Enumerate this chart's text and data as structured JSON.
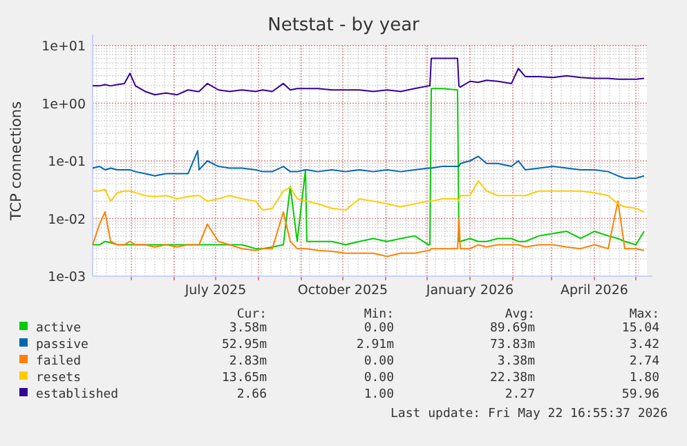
{
  "chart_data": {
    "type": "line",
    "title": "Netstat - by year",
    "ylabel": "TCP connections",
    "log": true,
    "grid": true,
    "legend": "bottom",
    "marker": "none",
    "line_style": "solid",
    "xlim": [
      "2025-04-03",
      "2026-05-09"
    ],
    "xticks": [
      {
        "value": "2025-05-01",
        "label": null
      },
      {
        "value": "2025-06-01",
        "label": null
      },
      {
        "value": "2025-07-01",
        "label": "July 2025"
      },
      {
        "value": "2025-08-01",
        "label": null
      },
      {
        "value": "2025-09-01",
        "label": null
      },
      {
        "value": "2025-10-01",
        "label": "October 2025"
      },
      {
        "value": "2025-11-01",
        "label": null
      },
      {
        "value": "2025-12-01",
        "label": null
      },
      {
        "value": "2026-01-01",
        "label": "January 2026"
      },
      {
        "value": "2026-02-01",
        "label": null
      },
      {
        "value": "2026-03-01",
        "label": null
      },
      {
        "value": "2026-04-01",
        "label": "April 2026"
      },
      {
        "value": "2026-05-01",
        "label": null
      }
    ],
    "ylim": [
      0.001,
      10
    ],
    "yticks": [
      {
        "value": 0.001,
        "label": "1e-03"
      },
      {
        "value": 0.01,
        "label": "1e-02"
      },
      {
        "value": 0.1,
        "label": "1e-01"
      },
      {
        "value": 1,
        "label": "1e+00"
      },
      {
        "value": 10,
        "label": "1e+01"
      }
    ],
    "x": [
      "2025-04-03",
      "2025-04-08",
      "2025-04-12",
      "2025-04-16",
      "2025-04-21",
      "2025-04-26",
      "2025-04-30",
      "2025-05-04",
      "2025-05-11",
      "2025-05-18",
      "2025-05-26",
      "2025-06-03",
      "2025-06-11",
      "2025-06-18",
      "2025-06-19",
      "2025-06-25",
      "2025-07-03",
      "2025-07-11",
      "2025-07-20",
      "2025-07-30",
      "2025-08-04",
      "2025-08-11",
      "2025-08-19",
      "2025-08-24",
      "2025-08-29",
      "2025-09-04",
      "2025-09-05",
      "2025-09-13",
      "2025-09-23",
      "2025-10-03",
      "2025-10-13",
      "2025-10-23",
      "2025-11-02",
      "2025-11-12",
      "2025-11-22",
      "2025-12-02",
      "2025-12-03",
      "2025-12-04",
      "2025-12-12",
      "2025-12-23",
      "2025-12-24",
      "2025-12-25",
      "2026-01-01",
      "2026-01-07",
      "2026-01-13",
      "2026-01-21",
      "2026-01-31",
      "2026-02-05",
      "2026-02-10",
      "2026-02-20",
      "2026-03-02",
      "2026-03-12",
      "2026-03-22",
      "2026-04-01",
      "2026-04-11",
      "2026-04-18",
      "2026-04-23",
      "2026-05-01",
      "2026-05-07"
    ],
    "series": [
      {
        "name": "active",
        "color": "#00cc00",
        "values": [
          0.0035,
          0.0035,
          0.004,
          0.0038,
          0.0035,
          0.0035,
          0.0035,
          0.0035,
          0.0035,
          0.0035,
          0.0035,
          0.0035,
          0.0035,
          0.0035,
          0.0035,
          0.0035,
          0.0035,
          0.0035,
          0.0035,
          0.003,
          0.003,
          0.0032,
          0.0035,
          0.036,
          0.004,
          0.07,
          0.004,
          0.004,
          0.004,
          0.0035,
          0.004,
          0.0045,
          0.004,
          0.0045,
          0.005,
          0.0035,
          0.0035,
          1.8,
          1.8,
          1.7,
          0.004,
          0.004,
          0.0045,
          0.004,
          0.004,
          0.0045,
          0.0045,
          0.004,
          0.004,
          0.005,
          0.0055,
          0.006,
          0.0045,
          0.006,
          0.005,
          0.0045,
          0.004,
          0.0035,
          0.006
        ]
      },
      {
        "name": "passive",
        "color": "#0066b3",
        "values": [
          0.075,
          0.08,
          0.07,
          0.075,
          0.07,
          0.07,
          0.07,
          0.065,
          0.06,
          0.055,
          0.06,
          0.06,
          0.06,
          0.15,
          0.07,
          0.1,
          0.08,
          0.075,
          0.075,
          0.07,
          0.065,
          0.065,
          0.08,
          0.065,
          0.065,
          0.07,
          0.07,
          0.065,
          0.07,
          0.065,
          0.07,
          0.065,
          0.07,
          0.065,
          0.07,
          0.075,
          0.075,
          0.075,
          0.08,
          0.08,
          0.08,
          0.09,
          0.1,
          0.12,
          0.09,
          0.09,
          0.08,
          0.1,
          0.07,
          0.075,
          0.08,
          0.075,
          0.07,
          0.07,
          0.065,
          0.055,
          0.05,
          0.05,
          0.055
        ]
      },
      {
        "name": "failed",
        "color": "#ff8000",
        "values": [
          0.0035,
          0.008,
          0.013,
          0.004,
          0.0035,
          0.0035,
          0.004,
          0.0035,
          0.0035,
          0.0032,
          0.0035,
          0.0032,
          0.0035,
          0.0035,
          0.0035,
          0.008,
          0.004,
          0.0035,
          0.003,
          0.0028,
          0.003,
          0.003,
          0.013,
          0.004,
          0.003,
          0.003,
          0.003,
          0.0028,
          0.0027,
          0.0025,
          0.0025,
          0.0025,
          0.0022,
          0.0025,
          0.0025,
          0.0028,
          0.0028,
          0.003,
          0.003,
          0.003,
          0.01,
          0.003,
          0.003,
          0.0035,
          0.0032,
          0.0035,
          0.0035,
          0.0035,
          0.0032,
          0.0035,
          0.0035,
          0.0032,
          0.003,
          0.0035,
          0.003,
          0.02,
          0.003,
          0.003,
          0.0028
        ]
      },
      {
        "name": "resets",
        "color": "#ffcc00",
        "values": [
          0.03,
          0.03,
          0.032,
          0.02,
          0.028,
          0.03,
          0.03,
          0.028,
          0.025,
          0.024,
          0.025,
          0.022,
          0.024,
          0.025,
          0.025,
          0.02,
          0.022,
          0.025,
          0.022,
          0.02,
          0.014,
          0.015,
          0.03,
          0.035,
          0.022,
          0.02,
          0.02,
          0.018,
          0.015,
          0.014,
          0.022,
          0.02,
          0.018,
          0.016,
          0.018,
          0.02,
          0.02,
          0.02,
          0.022,
          0.022,
          0.02,
          0.025,
          0.025,
          0.045,
          0.03,
          0.025,
          0.025,
          0.025,
          0.025,
          0.03,
          0.03,
          0.03,
          0.03,
          0.028,
          0.025,
          0.018,
          0.016,
          0.015,
          0.013
        ]
      },
      {
        "name": "established",
        "color": "#330099",
        "values": [
          2.0,
          2.0,
          2.1,
          2.0,
          2.1,
          2.2,
          3.3,
          2.0,
          1.6,
          1.4,
          1.5,
          1.4,
          1.7,
          1.6,
          1.6,
          2.2,
          1.7,
          1.6,
          1.7,
          1.6,
          1.7,
          1.6,
          2.2,
          1.7,
          1.8,
          1.8,
          1.8,
          1.8,
          1.7,
          1.7,
          1.7,
          1.6,
          1.7,
          1.6,
          1.8,
          2.0,
          2.0,
          6.0,
          6.0,
          6.0,
          2.0,
          1.9,
          2.4,
          2.3,
          2.5,
          2.4,
          2.2,
          4.0,
          2.9,
          2.9,
          2.8,
          3.0,
          2.8,
          2.7,
          2.7,
          2.6,
          2.6,
          2.6,
          2.7
        ]
      }
    ],
    "annotations": [
      "Cur:",
      "Min:",
      "Avg:",
      "Max:",
      "3.58m",
      "0.00",
      "89.69m",
      "15.04",
      "52.95m",
      "2.91m",
      "73.83m",
      "3.42",
      "2.83m",
      "0.00",
      "3.38m",
      "2.74",
      "13.65m",
      "0.00",
      "22.38m",
      "1.80",
      "2.66",
      "1.00",
      "2.27",
      "59.96",
      "Last update: Fri May 22 16:55:37 2026"
    ]
  }
}
